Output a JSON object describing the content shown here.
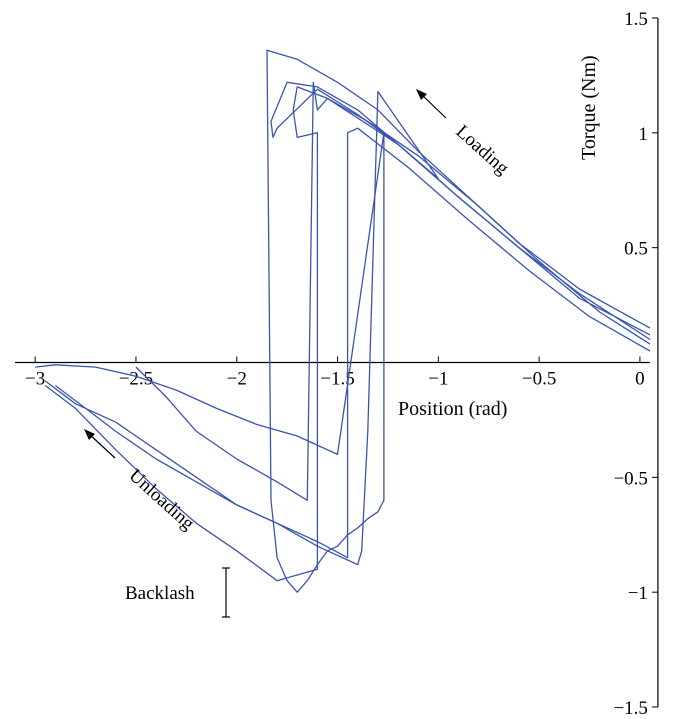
{
  "chart_data": {
    "type": "line",
    "xlabel": "Position (rad)",
    "ylabel": "Torque (Nm)",
    "xlim": [
      -3.1,
      0.05
    ],
    "ylim": [
      -1.5,
      1.5
    ],
    "x_ticks": [
      -3,
      -2.5,
      -2,
      -1.5,
      -1,
      -0.5,
      0
    ],
    "x_tick_labels": [
      "−3",
      "−2.5",
      "−2",
      "−1.5",
      "−1",
      "−0.5",
      "0"
    ],
    "y_ticks": [
      1.5,
      1,
      0.5,
      -0.5,
      -1,
      -1.5
    ],
    "y_tick_labels": [
      "1.5",
      "1",
      "0.5",
      "−0.5",
      "−1",
      "−1.5"
    ],
    "grid": false,
    "line_color": "#3a55b0",
    "annotations": {
      "loading": "Loading",
      "unloading": "Unloading",
      "backlash": "Backlash"
    },
    "series": [
      {
        "x": [
          0.05,
          -0.3,
          -0.6,
          -0.9,
          -1.1,
          -1.3,
          -1.5,
          -1.7,
          -1.85,
          -1.83,
          -1.8,
          -1.75,
          -1.7,
          -1.65,
          -1.6,
          -1.55,
          -1.5,
          -1.45,
          -1.4,
          -1.35,
          -1.3,
          -1.27,
          -1.27,
          -1.5,
          -1.7,
          -1.9,
          -2.1,
          -2.3,
          -2.5,
          -2.7,
          -2.9,
          -3.0
        ],
        "y": [
          0.15,
          0.32,
          0.52,
          0.76,
          0.92,
          1.1,
          1.22,
          1.32,
          1.36,
          -0.6,
          -0.85,
          -0.95,
          -1.0,
          -0.95,
          -0.88,
          -0.82,
          -0.8,
          -0.75,
          -0.72,
          -0.68,
          -0.65,
          -0.6,
          1.0,
          -0.4,
          -0.32,
          -0.27,
          -0.2,
          -0.12,
          -0.06,
          -0.02,
          -0.01,
          -0.02
        ]
      },
      {
        "x": [
          0.05,
          -0.3,
          -0.6,
          -0.9,
          -1.2,
          -1.4,
          -1.6,
          -1.75,
          -1.83,
          -1.82,
          -1.8,
          -1.6,
          -1.4,
          -1.2,
          -1.0,
          -1.3,
          -1.35,
          -1.38,
          -1.4,
          -1.6,
          -1.8,
          -2.0,
          -2.2,
          -2.4,
          -2.6,
          -2.8,
          -2.95
        ],
        "y": [
          0.12,
          0.28,
          0.5,
          0.72,
          0.95,
          1.1,
          1.2,
          1.22,
          1.05,
          0.98,
          1.02,
          1.19,
          1.08,
          0.95,
          0.8,
          1.18,
          -0.3,
          -0.82,
          -0.88,
          -0.8,
          -0.7,
          -0.62,
          -0.5,
          -0.38,
          -0.26,
          -0.18,
          -0.08
        ]
      },
      {
        "x": [
          0.05,
          -0.2,
          -0.5,
          -0.8,
          -1.1,
          -1.35,
          -1.55,
          -1.7,
          -1.72,
          -1.7,
          -1.6,
          -1.6,
          -1.8,
          -2.0,
          -2.2,
          -2.4,
          -2.6,
          -2.8,
          -2.95
        ],
        "y": [
          0.08,
          0.22,
          0.44,
          0.68,
          0.9,
          1.05,
          1.15,
          1.2,
          1.1,
          0.98,
          1.0,
          -0.9,
          -0.95,
          -0.82,
          -0.7,
          -0.55,
          -0.38,
          -0.2,
          -0.1
        ]
      },
      {
        "x": [
          0.05,
          -0.25,
          -0.55,
          -0.85,
          -1.15,
          -1.4,
          -1.45,
          -1.45,
          -1.6,
          -1.8,
          -2.0,
          -2.2,
          -2.4,
          -2.6,
          -2.75,
          -2.9
        ],
        "y": [
          0.05,
          0.2,
          0.4,
          0.62,
          0.85,
          1.02,
          1.0,
          -0.85,
          -0.78,
          -0.7,
          -0.62,
          -0.52,
          -0.42,
          -0.3,
          -0.2,
          -0.1
        ]
      },
      {
        "x": [
          0.05,
          -0.3,
          -0.6,
          -0.9,
          -1.2,
          -1.55,
          -1.6,
          -1.62,
          -1.65,
          -1.8,
          -2.0,
          -2.2,
          -2.35,
          -2.5
        ],
        "y": [
          0.1,
          0.3,
          0.5,
          0.72,
          0.95,
          1.15,
          1.1,
          1.22,
          -0.6,
          -0.52,
          -0.42,
          -0.3,
          -0.15,
          -0.02
        ]
      }
    ]
  }
}
